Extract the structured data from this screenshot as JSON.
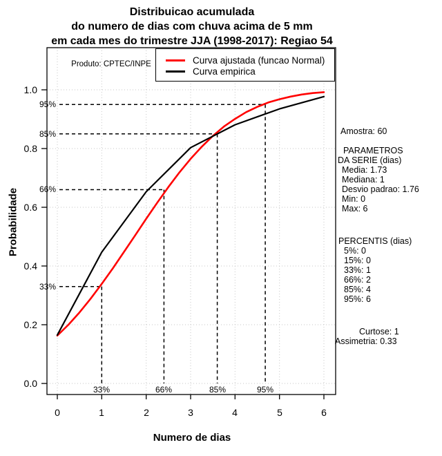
{
  "title": {
    "line1": "Distribuicao acumulada",
    "line2": "do numero de dias com chuva acima de 5 mm",
    "line3": "em cada mes do trimestre JJA (1998-2017): Regiao 54"
  },
  "produto_label": "Produto: CPTEC/INPE",
  "legend": {
    "items": [
      {
        "label": "Curva ajustada (funcao Normal)",
        "color": "#ff0000"
      },
      {
        "label": "Curva empirica",
        "color": "#000000"
      }
    ]
  },
  "axes": {
    "x_label": "Numero de dias",
    "y_label": "Probabilidade",
    "x_ticks": [
      "0",
      "1",
      "2",
      "3",
      "4",
      "5",
      "6"
    ],
    "y_ticks": [
      "0.0",
      "0.2",
      "0.4",
      "0.6",
      "0.8",
      "1.0"
    ]
  },
  "right_panel": {
    "amostra": "Amostra: 60",
    "parametros": [
      "PARAMETROS",
      "DA SERIE (dias)",
      "Media: 1.73",
      "Mediana: 1",
      "Desvio padrao: 1.76",
      "Min: 0",
      "Max: 6"
    ],
    "percentis": [
      "PERCENTIS (dias)",
      "5%: 0",
      "15%: 0",
      "33%: 1",
      "66%: 2",
      "85%: 4",
      "95%: 6"
    ],
    "stats": [
      "Curtose: 1",
      "Assimetria: 0.33"
    ]
  },
  "chart_data": {
    "type": "line",
    "title": "Distribuicao acumulada do numero de dias com chuva acima de 5 mm em cada mes do trimestre JJA (1998-2017): Regiao 54",
    "xlabel": "Numero de dias",
    "ylabel": "Probabilidade",
    "xlim": [
      0,
      6
    ],
    "ylim": [
      0,
      1
    ],
    "grid": true,
    "legend_position": "top",
    "series": [
      {
        "name": "Curva ajustada (funcao Normal)",
        "color": "#ff0000",
        "kind": "fitted-normal-cdf",
        "mean": 1.73,
        "sd": 1.76,
        "x": [
          0,
          0.25,
          0.5,
          0.75,
          1,
          1.25,
          1.5,
          1.75,
          2,
          2.25,
          2.5,
          2.75,
          3,
          3.25,
          3.5,
          3.75,
          4,
          4.25,
          4.5,
          4.75,
          5,
          5.25,
          5.5,
          5.75,
          6
        ],
        "y": [
          0.163,
          0.2,
          0.242,
          0.289,
          0.339,
          0.392,
          0.448,
          0.504,
          0.561,
          0.616,
          0.669,
          0.719,
          0.765,
          0.806,
          0.843,
          0.875,
          0.901,
          0.924,
          0.942,
          0.957,
          0.968,
          0.977,
          0.984,
          0.989,
          0.992
        ]
      },
      {
        "name": "Curva empirica",
        "color": "#000000",
        "kind": "empirical-cdf",
        "x": [
          0,
          1,
          2,
          3,
          4,
          5,
          6
        ],
        "y": [
          0.165,
          0.447,
          0.653,
          0.803,
          0.881,
          0.935,
          0.977
        ]
      }
    ],
    "percentile_guides": [
      {
        "label": "33%",
        "x": 1.0,
        "p": 0.33
      },
      {
        "label": "66%",
        "x": 2.4,
        "p": 0.66
      },
      {
        "label": "85%",
        "x": 3.6,
        "p": 0.85
      },
      {
        "label": "95%",
        "x": 4.68,
        "p": 0.95
      }
    ]
  }
}
